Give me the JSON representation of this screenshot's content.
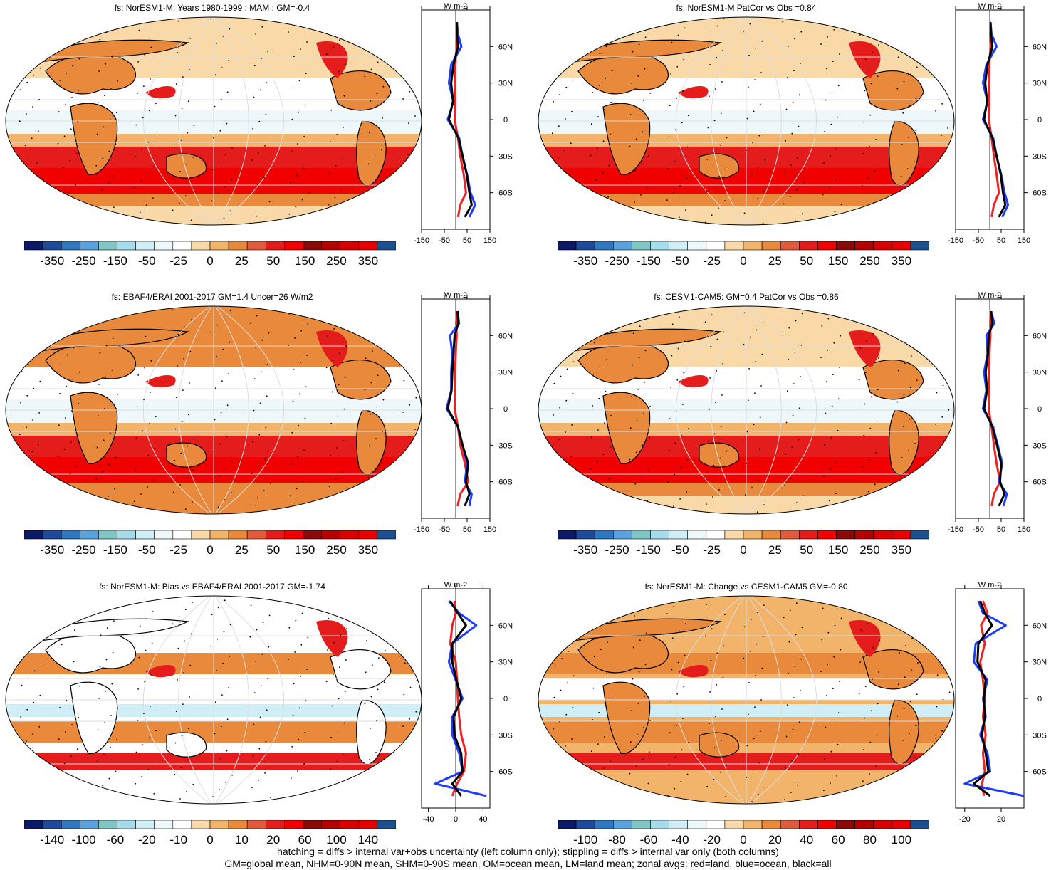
{
  "footer": {
    "line1": "hatching = diffs > internal var+obs uncertainty (left column only); stippling = diffs > internal var only (both columns)",
    "line2": "GM=global mean, NHM=0-90N mean, SHM=0-90S mean, OM=ocean mean, LM=land mean; zonal avgs: red=land, blue=ocean, black=all"
  },
  "zonal_units": "W m-2",
  "lat_labels": [
    "60N",
    "30N",
    "0",
    "30S",
    "60S"
  ],
  "colors": {
    "land": "#ee2222",
    "ocean": "#1e3cff",
    "all": "#000000",
    "palette_main": [
      "#0b1966",
      "#1f4a9a",
      "#2f78c0",
      "#5aa2de",
      "#7fc6c4",
      "#a6dceb",
      "#cfeef6",
      "#eef8fb",
      "#ffffff",
      "#f9d9a8",
      "#f2b36a",
      "#e8893c",
      "#e25a3c",
      "#e51c1c",
      "#f00000",
      "#8a0a0a",
      "#b30000",
      "#d80000",
      "#e60000",
      "#1e5090"
    ]
  },
  "chart_data": [
    {
      "type": "heatmap",
      "title": "fs: NorESM1-M: Years 1980-1999 : MAM : GM=-0.4",
      "colorbar_labels": [
        "-350",
        "-250",
        "-150",
        "-50",
        "-25",
        "0",
        "25",
        "50",
        "150",
        "250",
        "350"
      ],
      "zonal": {
        "x_ticks": [
          "-150",
          "-50",
          "50",
          "150"
        ],
        "xlim": [
          -150,
          150
        ],
        "lat": [
          80,
          70,
          60,
          45,
          30,
          15,
          0,
          -15,
          -30,
          -45,
          -60,
          -70,
          -80
        ],
        "land": [
          5,
          3,
          4,
          -2,
          -3,
          -2,
          -5,
          10,
          20,
          35,
          45,
          20,
          10
        ],
        "ocean": [
          5,
          10,
          25,
          -20,
          -30,
          -10,
          -35,
          15,
          30,
          50,
          65,
          85,
          60
        ],
        "all": [
          5,
          5,
          10,
          -10,
          -20,
          -12,
          -30,
          12,
          30,
          48,
          60,
          70,
          40
        ]
      }
    },
    {
      "type": "heatmap",
      "title": "fs: NorESM1-M PatCor vs Obs =0.84",
      "colorbar_labels": [
        "-350",
        "-250",
        "-150",
        "-50",
        "-25",
        "0",
        "25",
        "50",
        "150",
        "250",
        "350"
      ],
      "zonal": {
        "x_ticks": [
          "-150",
          "-50",
          "50",
          "150"
        ],
        "xlim": [
          -150,
          150
        ],
        "lat": [
          80,
          70,
          60,
          45,
          30,
          15,
          0,
          -15,
          -30,
          -45,
          -60,
          -70,
          -80
        ],
        "land": [
          3,
          2,
          3,
          -2,
          -3,
          -2,
          -4,
          8,
          18,
          30,
          40,
          18,
          8
        ],
        "ocean": [
          3,
          8,
          30,
          -15,
          -30,
          -10,
          -30,
          15,
          30,
          50,
          65,
          80,
          55
        ],
        "all": [
          3,
          5,
          12,
          -10,
          -20,
          -12,
          -25,
          12,
          30,
          48,
          58,
          68,
          40
        ]
      }
    },
    {
      "type": "heatmap",
      "title": "fs: EBAF4/ERAI 2001-2017 GM=1.4 Uncer=26 W/m2",
      "colorbar_labels": [
        "-350",
        "-250",
        "-150",
        "-50",
        "-25",
        "0",
        "25",
        "50",
        "150",
        "250",
        "350"
      ],
      "zonal": {
        "x_ticks": [
          "-150",
          "-50",
          "50",
          "150"
        ],
        "xlim": [
          -150,
          150
        ],
        "lat": [
          80,
          70,
          60,
          45,
          30,
          15,
          0,
          -15,
          -30,
          -45,
          -60,
          -70,
          -80
        ],
        "land": [
          5,
          2,
          4,
          0,
          -3,
          -4,
          -5,
          10,
          20,
          40,
          55,
          20,
          8
        ],
        "ocean": [
          8,
          15,
          -25,
          -15,
          -20,
          -20,
          -40,
          10,
          30,
          50,
          40,
          70,
          60
        ],
        "all": [
          8,
          12,
          -5,
          -10,
          -15,
          -18,
          -35,
          10,
          30,
          55,
          45,
          60,
          40
        ]
      }
    },
    {
      "type": "heatmap",
      "title": "fs: CESM1-CAM5: GM=0.4 PatCor vs Obs =0.86",
      "colorbar_labels": [
        "-350",
        "-250",
        "-150",
        "-50",
        "-25",
        "0",
        "25",
        "50",
        "150",
        "250",
        "350"
      ],
      "zonal": {
        "x_ticks": [
          "-150",
          "-50",
          "50",
          "150"
        ],
        "xlim": [
          -150,
          150
        ],
        "lat": [
          80,
          70,
          60,
          45,
          30,
          15,
          0,
          -15,
          -30,
          -45,
          -60,
          -70,
          -80
        ],
        "land": [
          4,
          2,
          3,
          -2,
          -4,
          -3,
          -5,
          8,
          18,
          30,
          45,
          18,
          8
        ],
        "ocean": [
          6,
          20,
          -15,
          -10,
          -25,
          -15,
          -30,
          15,
          35,
          55,
          40,
          75,
          60
        ],
        "all": [
          5,
          12,
          -5,
          -8,
          -18,
          -12,
          -25,
          12,
          32,
          50,
          45,
          65,
          40
        ]
      }
    },
    {
      "type": "heatmap",
      "title": "fs: NorESM1-M: Bias vs EBAF4/ERAI 2001-2017 GM=-1.74",
      "colorbar_labels": [
        "-140",
        "-100",
        "-60",
        "-20",
        "-10",
        "0",
        "10",
        "20",
        "60",
        "100",
        "140"
      ],
      "zonal": {
        "x_ticks": [
          "-40",
          "0",
          "40"
        ],
        "xlim": [
          -50,
          50
        ],
        "lat": [
          80,
          70,
          60,
          45,
          30,
          15,
          0,
          -15,
          -30,
          -45,
          -60,
          -70,
          -80
        ],
        "land": [
          -2,
          0,
          -5,
          -8,
          0,
          2,
          3,
          5,
          8,
          15,
          12,
          2,
          -5
        ],
        "ocean": [
          -10,
          5,
          30,
          -5,
          -10,
          0,
          10,
          -5,
          -5,
          5,
          10,
          -30,
          45
        ],
        "all": [
          -8,
          3,
          15,
          -5,
          -5,
          1,
          8,
          -3,
          -2,
          8,
          10,
          -5,
          8
        ]
      }
    },
    {
      "type": "heatmap",
      "title": "fs: NorESM1-M: Change vs CESM1-CAM5 GM=-0.80",
      "colorbar_labels": [
        "-100",
        "-80",
        "-60",
        "-40",
        "-20",
        "0",
        "20",
        "40",
        "60",
        "80",
        "100"
      ],
      "zonal": {
        "x_ticks": [
          "-20",
          "20"
        ],
        "xlim": [
          -30,
          45
        ],
        "lat": [
          80,
          70,
          60,
          45,
          30,
          15,
          0,
          -15,
          -30,
          -45,
          -60,
          -70,
          -80
        ],
        "land": [
          0,
          5,
          -2,
          2,
          -3,
          0,
          2,
          0,
          3,
          0,
          2,
          -1,
          1
        ],
        "ocean": [
          -5,
          0,
          25,
          -8,
          -10,
          5,
          0,
          3,
          -3,
          5,
          8,
          -20,
          45
        ],
        "all": [
          -3,
          2,
          10,
          -5,
          -6,
          3,
          1,
          2,
          -1,
          3,
          6,
          -10,
          8
        ]
      }
    }
  ]
}
